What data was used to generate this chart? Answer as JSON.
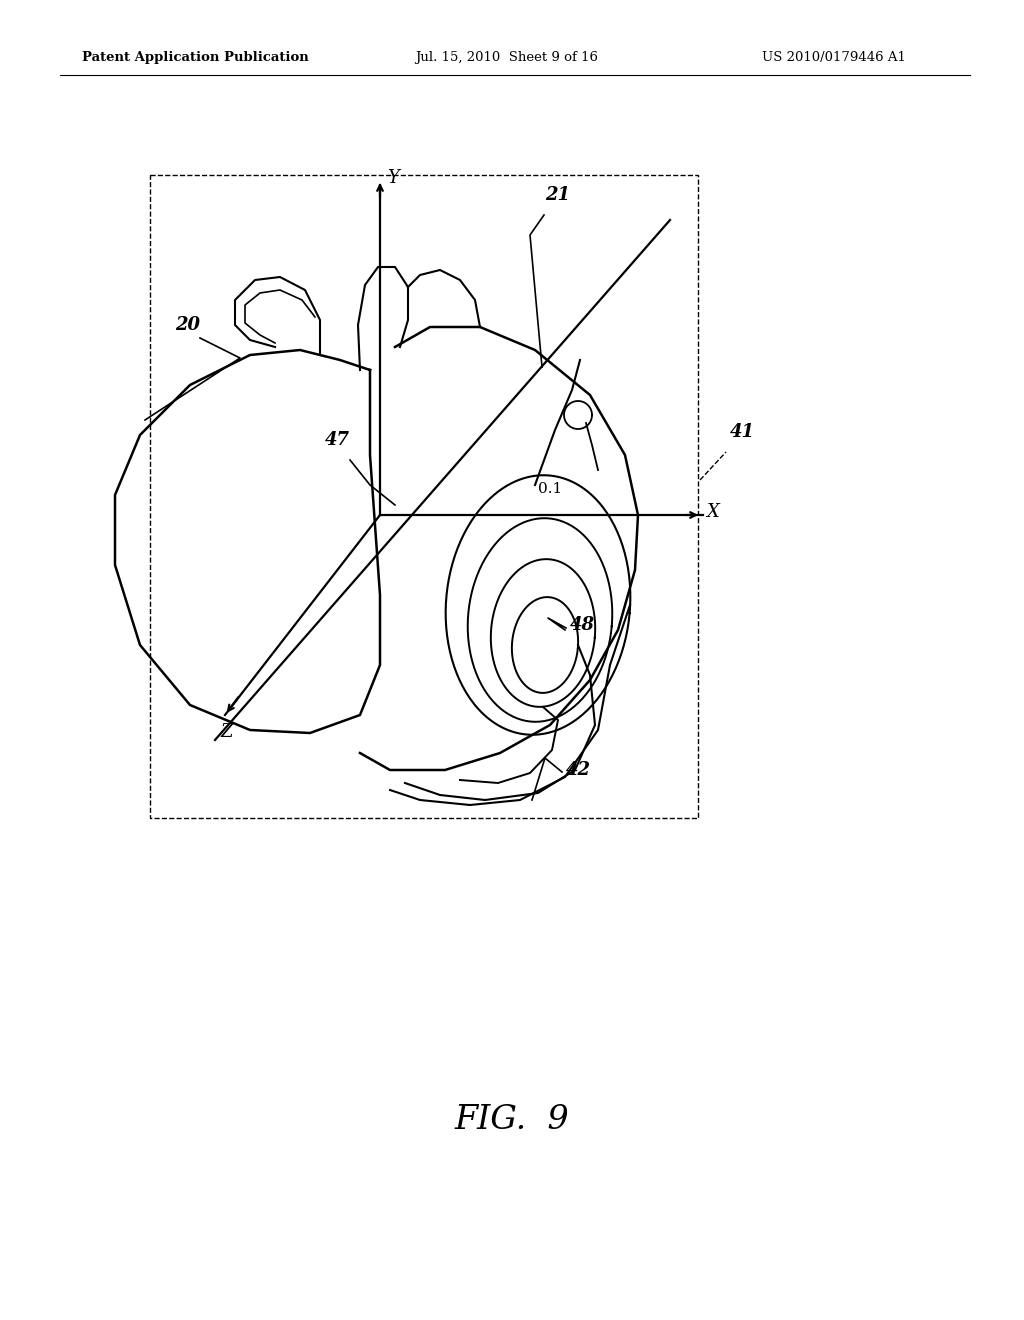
{
  "header_left": "Patent Application Publication",
  "header_mid": "Jul. 15, 2010  Sheet 9 of 16",
  "header_right": "US 2010/0179446 A1",
  "background_color": "#ffffff",
  "line_color": "#000000",
  "fig_label": "FIG.  9"
}
